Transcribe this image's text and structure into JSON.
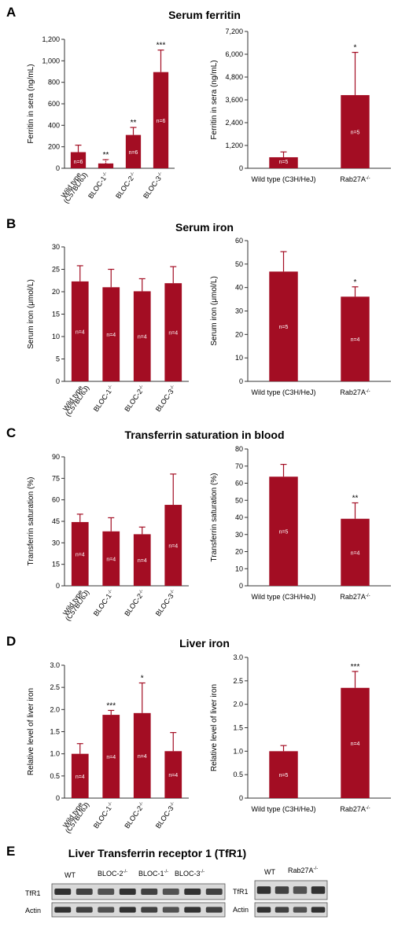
{
  "panels": [
    {
      "letter": "A",
      "title": "Serum ferritin"
    },
    {
      "letter": "B",
      "title": "Serum iron"
    },
    {
      "letter": "C",
      "title": "Transferrin saturation in blood"
    },
    {
      "letter": "D",
      "title": "Liver iron"
    },
    {
      "letter": "E",
      "title": "Liver Transferrin receptor 1 (TfR1)"
    }
  ],
  "colors": {
    "bar": "#a30d23",
    "error": "#a30d23",
    "axis": "#333333"
  },
  "chart_data": [
    {
      "id": "A-left",
      "type": "bar",
      "panel": "A",
      "ylabel": "Ferritin in sera (ng/mL)",
      "ylim": [
        0,
        1200
      ],
      "yticks": [
        0,
        200,
        400,
        600,
        800,
        1000,
        1200
      ],
      "ytick_labels": [
        "0",
        "200",
        "400",
        "600",
        "800",
        "1,000",
        "1,200"
      ],
      "categories": [
        {
          "label": "Wild type",
          "label2": "(C57BL/6J)",
          "sup": ""
        },
        {
          "label": "BLOC-1",
          "label2": "",
          "sup": "-/-"
        },
        {
          "label": "BLOC-2",
          "label2": "",
          "sup": "-/-"
        },
        {
          "label": "BLOC-3",
          "label2": "",
          "sup": "-/-"
        }
      ],
      "values": [
        150,
        45,
        310,
        895
      ],
      "errors": [
        65,
        35,
        70,
        205
      ],
      "n_labels": [
        "n=6",
        "n=6",
        "n=6",
        "n=6"
      ],
      "significance": [
        "",
        "**",
        "**",
        "***"
      ],
      "rotate_labels": true
    },
    {
      "id": "A-right",
      "type": "bar",
      "panel": "A",
      "ylabel": "Ferritin in sera (ng/mL)",
      "ylim": [
        0,
        7200
      ],
      "yticks": [
        0,
        1200,
        2400,
        3600,
        4800,
        6000,
        7200
      ],
      "ytick_labels": [
        "0",
        "1,200",
        "2,400",
        "3,600",
        "4,800",
        "6,000",
        "7,200"
      ],
      "categories": [
        {
          "label": "Wild type (C3H/HeJ)",
          "label2": "",
          "sup": ""
        },
        {
          "label": "Rab27A",
          "label2": "",
          "sup": "-/-"
        }
      ],
      "values": [
        580,
        3850
      ],
      "errors": [
        280,
        2250
      ],
      "n_labels": [
        "n=5",
        "n=5"
      ],
      "significance": [
        "",
        "*"
      ],
      "rotate_labels": false
    },
    {
      "id": "B-left",
      "type": "bar",
      "panel": "B",
      "ylabel": "Serum iron (μmol/L)",
      "ylim": [
        0,
        30
      ],
      "yticks": [
        0,
        5,
        10,
        15,
        20,
        25,
        30
      ],
      "ytick_labels": [
        "0",
        "5",
        "10",
        "15",
        "20",
        "25",
        "30"
      ],
      "categories": [
        {
          "label": "Wild type",
          "label2": "(C57BL/6J)",
          "sup": ""
        },
        {
          "label": "BLOC-1",
          "label2": "",
          "sup": "-/-"
        },
        {
          "label": "BLOC-2",
          "label2": "",
          "sup": "-/-"
        },
        {
          "label": "BLOC-3",
          "label2": "",
          "sup": "-/-"
        }
      ],
      "values": [
        22.3,
        21.0,
        20.1,
        21.9
      ],
      "errors": [
        3.5,
        4.0,
        2.8,
        3.7
      ],
      "n_labels": [
        "n=4",
        "n=4",
        "n=4",
        "n=4"
      ],
      "significance": [
        "",
        "",
        "",
        ""
      ],
      "rotate_labels": true
    },
    {
      "id": "B-right",
      "type": "bar",
      "panel": "B",
      "ylabel": "Serum iron (μmol/L)",
      "ylim": [
        0,
        60
      ],
      "yticks": [
        0,
        10,
        20,
        30,
        40,
        50,
        60
      ],
      "ytick_labels": [
        "0",
        "10",
        "20",
        "30",
        "40",
        "50",
        "60"
      ],
      "categories": [
        {
          "label": "Wild type (C3H/HeJ)",
          "label2": "",
          "sup": ""
        },
        {
          "label": "Rab27A",
          "label2": "",
          "sup": "-/-"
        }
      ],
      "values": [
        46.8,
        36.1
      ],
      "errors": [
        8.5,
        4.2
      ],
      "n_labels": [
        "n=5",
        "n=4"
      ],
      "significance": [
        "",
        "*"
      ],
      "rotate_labels": false
    },
    {
      "id": "C-left",
      "type": "bar",
      "panel": "C",
      "ylabel": "Transferrin saturation (%)",
      "ylim": [
        0,
        90
      ],
      "yticks": [
        0,
        15,
        30,
        45,
        60,
        75,
        90
      ],
      "ytick_labels": [
        "0",
        "15",
        "30",
        "45",
        "60",
        "75",
        "90"
      ],
      "categories": [
        {
          "label": "Wild type",
          "label2": "(C57BL/6J)",
          "sup": ""
        },
        {
          "label": "BLOC-1",
          "label2": "",
          "sup": "-/-"
        },
        {
          "label": "BLOC-2",
          "label2": "",
          "sup": "-/-"
        },
        {
          "label": "BLOC-3",
          "label2": "",
          "sup": "-/-"
        }
      ],
      "values": [
        44.5,
        38,
        36,
        56.5
      ],
      "errors": [
        5.5,
        9.5,
        5,
        21.5
      ],
      "n_labels": [
        "n=4",
        "n=4",
        "n=4",
        "n=4"
      ],
      "significance": [
        "",
        "",
        "",
        ""
      ],
      "rotate_labels": true
    },
    {
      "id": "C-right",
      "type": "bar",
      "panel": "C",
      "ylabel": "Transferrin saturation (%)",
      "ylim": [
        0,
        80
      ],
      "yticks": [
        0,
        10,
        20,
        30,
        40,
        50,
        60,
        70,
        80
      ],
      "ytick_labels": [
        "0",
        "10",
        "20",
        "30",
        "40",
        "50",
        "60",
        "70",
        "80"
      ],
      "categories": [
        {
          "label": "Wild type (C3H/HeJ)",
          "label2": "",
          "sup": ""
        },
        {
          "label": "Rab27A",
          "label2": "",
          "sup": "-/-"
        }
      ],
      "values": [
        63.8,
        39.2
      ],
      "errors": [
        7.2,
        9.3
      ],
      "n_labels": [
        "n=5",
        "n=4"
      ],
      "significance": [
        "",
        "**"
      ],
      "rotate_labels": false
    },
    {
      "id": "D-left",
      "type": "bar",
      "panel": "D",
      "ylabel": "Relative level of liver iron",
      "ylim": [
        0,
        3.0
      ],
      "yticks": [
        0,
        0.5,
        1.0,
        1.5,
        2.0,
        2.5,
        3.0
      ],
      "ytick_labels": [
        "0",
        "0.5",
        "1.0",
        "1.5",
        "2.0",
        "2.5",
        "3.0"
      ],
      "categories": [
        {
          "label": "Wild type",
          "label2": "(C57BL/6J)",
          "sup": ""
        },
        {
          "label": "BLOC-1",
          "label2": "",
          "sup": "-/-"
        },
        {
          "label": "BLOC-2",
          "label2": "",
          "sup": "-/-"
        },
        {
          "label": "BLOC-3",
          "label2": "",
          "sup": "-/-"
        }
      ],
      "values": [
        1.0,
        1.88,
        1.92,
        1.06
      ],
      "errors": [
        0.23,
        0.1,
        0.68,
        0.42
      ],
      "n_labels": [
        "n=4",
        "n=4",
        "n=4",
        "n=4"
      ],
      "significance": [
        "",
        "***",
        "*",
        ""
      ],
      "rotate_labels": true
    },
    {
      "id": "D-right",
      "type": "bar",
      "panel": "D",
      "ylabel": "Relative level of liver iron",
      "ylim": [
        0,
        3.0
      ],
      "yticks": [
        0,
        0.5,
        1.0,
        1.5,
        2.0,
        2.5,
        3.0
      ],
      "ytick_labels": [
        "0",
        "0.5",
        "1.0",
        "1.5",
        "2.0",
        "2.5",
        "3.0"
      ],
      "categories": [
        {
          "label": "Wild type (C3H/HeJ)",
          "label2": "",
          "sup": ""
        },
        {
          "label": "Rab27A",
          "label2": "",
          "sup": "-/-"
        }
      ],
      "values": [
        1.0,
        2.35
      ],
      "errors": [
        0.12,
        0.35
      ],
      "n_labels": [
        "n=5",
        "n=4"
      ],
      "significance": [
        "",
        "***"
      ],
      "rotate_labels": false
    }
  ],
  "blots": {
    "left": {
      "column_labels": [
        {
          "label": "WT",
          "sup": ""
        },
        {
          "label": "BLOC-2",
          "sup": "-/-"
        },
        {
          "label": "BLOC-1",
          "sup": "-/-"
        },
        {
          "label": "BLOC-3",
          "sup": "-/-"
        }
      ],
      "row_labels": [
        "TfR1",
        "Actin"
      ]
    },
    "right": {
      "column_labels": [
        {
          "label": "WT",
          "sup": ""
        },
        {
          "label": "Rab27A",
          "sup": "-/-"
        }
      ],
      "row_labels": [
        "TfR1",
        "Actin"
      ]
    }
  }
}
